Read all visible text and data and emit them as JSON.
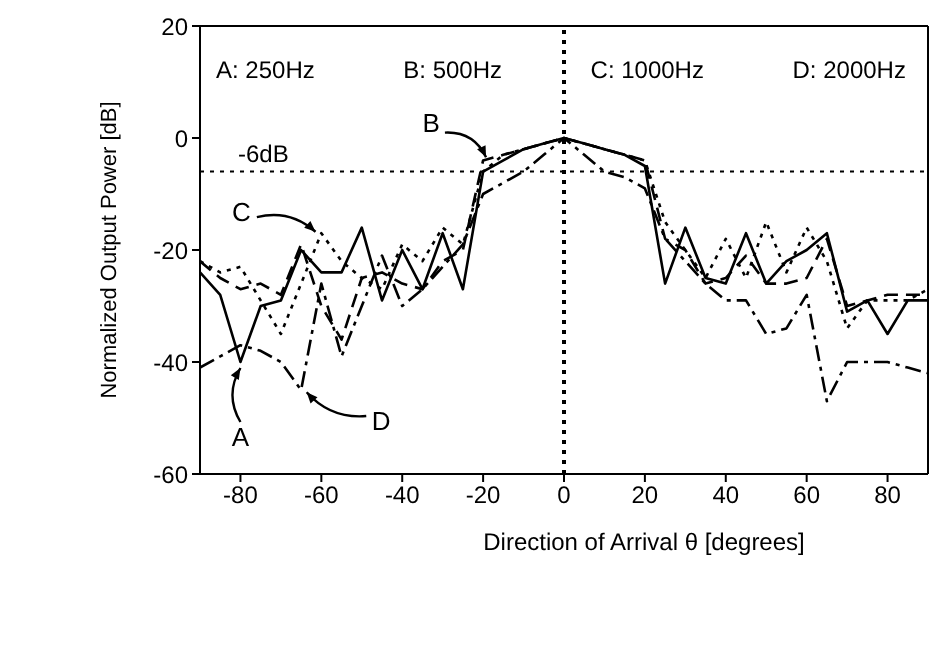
{
  "chart_data": {
    "type": "line",
    "xlabel": "Direction of Arrival θ [degrees]",
    "ylabel": "Normalized Output Power [dB]",
    "x": [
      -90,
      -85,
      -80,
      -75,
      -70,
      -65,
      -60,
      -55,
      -50,
      -45,
      -40,
      -35,
      -30,
      -25,
      -20,
      -15,
      -10,
      -5,
      0,
      5,
      10,
      15,
      20,
      25,
      30,
      35,
      40,
      45,
      50,
      55,
      60,
      65,
      70,
      75,
      80,
      85,
      90
    ],
    "series": [
      {
        "color": "#000000",
        "line_style": "solid",
        "values": [
          -24,
          -28,
          -40,
          -30,
          -29,
          -20,
          -24,
          -24,
          -16,
          -29,
          -20,
          -27,
          -17,
          -27,
          -6,
          -4,
          -2,
          -1,
          0,
          -1,
          -2,
          -3,
          -5,
          -26,
          -16,
          -25,
          -26,
          -17,
          -26,
          -22,
          -20,
          -17,
          -31,
          -29,
          -35,
          -29,
          -29
        ]
      },
      {
        "color": "#000000",
        "line_style": "dashed",
        "values": [
          -22,
          -25,
          -27,
          -26,
          -28,
          -19,
          -30,
          -36,
          -25,
          -24,
          -26,
          -27,
          -22,
          -20,
          -4,
          -3,
          -2,
          -1,
          0,
          -1,
          -2,
          -3,
          -4,
          -18,
          -20,
          -26,
          -25,
          -21,
          -26,
          -26,
          -25,
          -18,
          -30,
          -29,
          -28,
          -28,
          -28
        ]
      },
      {
        "color": "#000000",
        "line_style": "dotted",
        "values": [
          -22,
          -24,
          -23,
          -29,
          -35,
          -26,
          -17,
          -22,
          -25,
          -27,
          -19,
          -22,
          -16,
          -19,
          -6,
          -3,
          -2,
          -1,
          0,
          -1,
          -2,
          -3,
          -4,
          -15,
          -20,
          -25,
          -18,
          -25,
          -15,
          -24,
          -16,
          -22,
          -34,
          -29,
          -29,
          -29,
          -27
        ]
      },
      {
        "color": "#000000",
        "line_style": "dashdot",
        "values": [
          -41,
          -39,
          -37,
          -38,
          -40,
          -45,
          -26,
          -39,
          -30,
          -21,
          -30,
          -27,
          -23,
          -19,
          -10,
          -8,
          -6,
          -3,
          0,
          -3,
          -6,
          -7,
          -9,
          -18,
          -22,
          -26,
          -29,
          -29,
          -35,
          -34,
          -28,
          -47,
          -40,
          -40,
          -40,
          -41,
          -42
        ]
      }
    ],
    "xlim": [
      -90,
      90
    ],
    "xticks": [
      -80,
      -60,
      -40,
      -20,
      0,
      20,
      40,
      60,
      80
    ],
    "ylim": [
      -60,
      20
    ],
    "yticks": [
      -60,
      -40,
      -20,
      0,
      20
    ],
    "ref_lines": [
      {
        "axis": "y",
        "value": -6,
        "label": "-6dB",
        "line_style": "dotted"
      },
      {
        "axis": "x",
        "value": 0,
        "line_style": "dotted"
      }
    ],
    "annotations": [
      "A: 250Hz",
      "B: 500Hz",
      "C: 1000Hz",
      "D: 2000Hz",
      {
        "text": "A",
        "x": -80,
        "y": -40
      },
      {
        "text": "B",
        "x": -18,
        "y": -4
      },
      {
        "text": "C",
        "x": -60,
        "y": -17
      },
      {
        "text": "D",
        "x": -65,
        "y": -45
      }
    ]
  }
}
